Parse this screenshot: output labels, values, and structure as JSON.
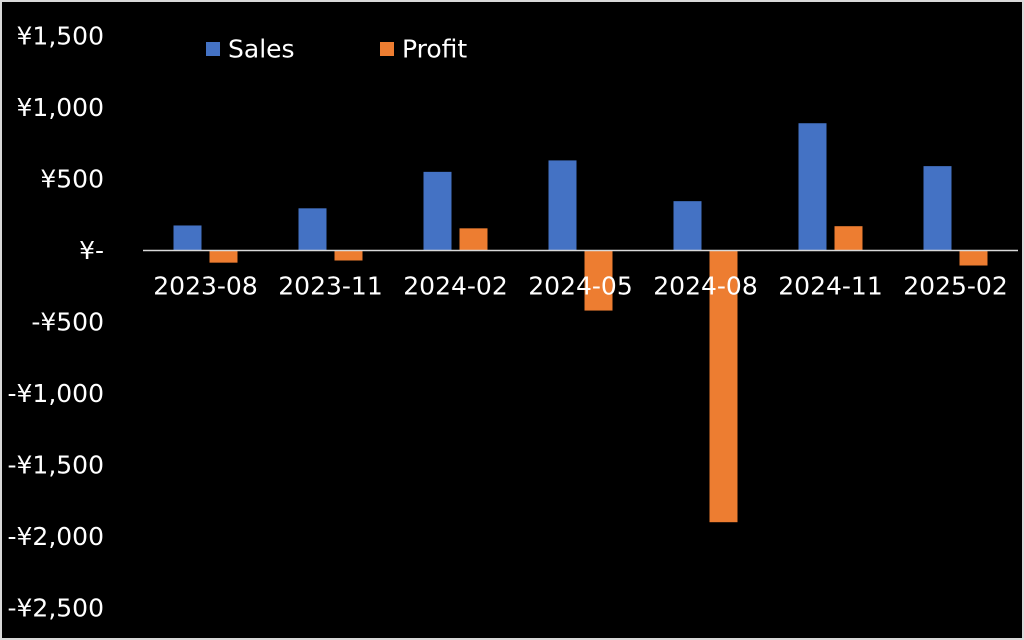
{
  "chart_data": {
    "type": "bar",
    "categories": [
      "2023-08",
      "2023-11",
      "2024-02",
      "2024-05",
      "2024-08",
      "2024-11",
      "2025-02"
    ],
    "series": [
      {
        "name": "Sales",
        "color": "#4472c4",
        "values": [
          175,
          295,
          550,
          630,
          345,
          890,
          590
        ]
      },
      {
        "name": "Profit",
        "color": "#ed7d31",
        "values": [
          -85,
          -70,
          155,
          -420,
          -1900,
          170,
          -105
        ]
      }
    ],
    "ylim": [
      -2500,
      1500
    ],
    "y_ticks": [
      1500,
      1000,
      500,
      0,
      -500,
      -1000,
      -1500,
      -2000,
      -2500
    ],
    "y_tick_labels": [
      "¥1,500",
      "¥1,000",
      "¥500",
      "¥-",
      "-¥500",
      "-¥1,000",
      "-¥1,500",
      "-¥2,000",
      "-¥2,500"
    ],
    "legend_position": "top-left",
    "background": "#000000",
    "grid": false,
    "title": "",
    "xlabel": "",
    "ylabel": ""
  }
}
